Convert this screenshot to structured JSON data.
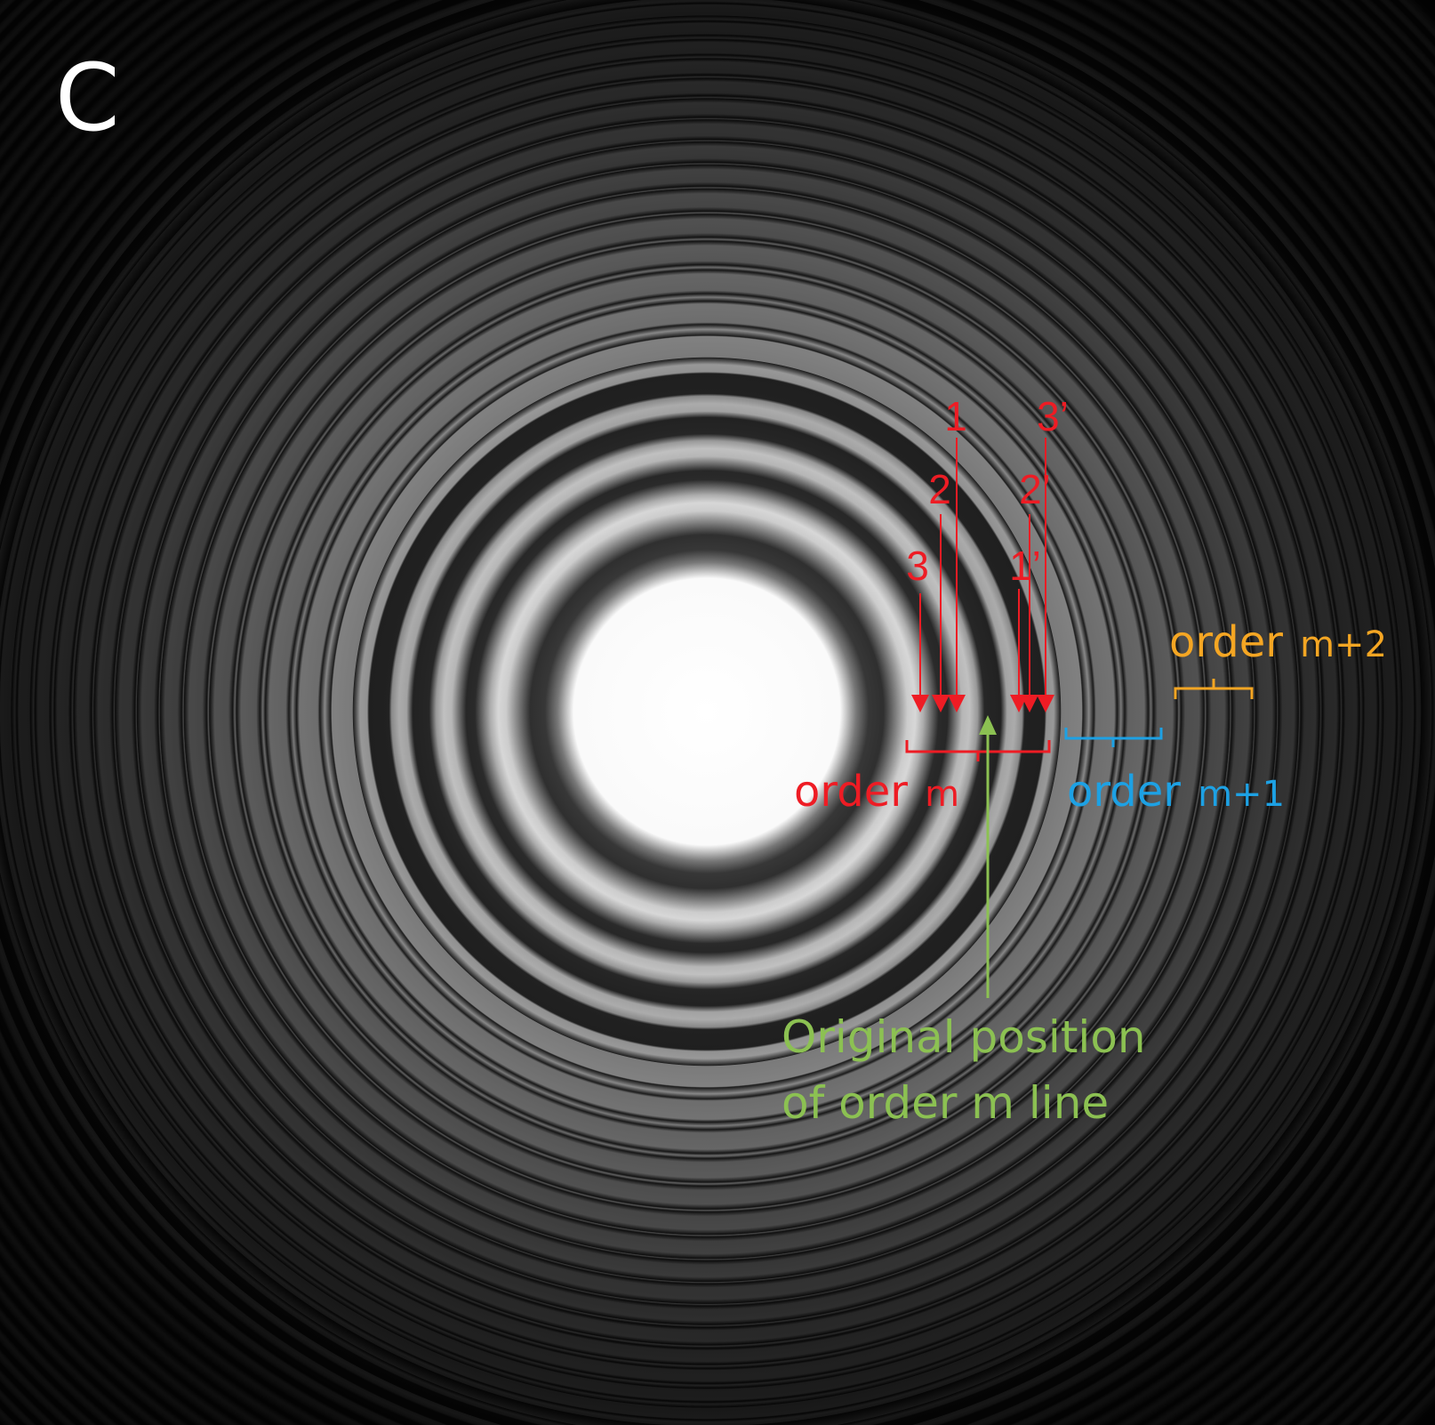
{
  "panel_label": "C",
  "colors": {
    "background": "#000000",
    "order_m": "#ee1c24",
    "order_m_plus_1": "#1da1e4",
    "order_m_plus_2": "#f5a623",
    "original_position": "#8cc152",
    "label_white": "#ffffff"
  },
  "arrows": {
    "inner_labels": [
      "3",
      "2",
      "1"
    ],
    "outer_labels": [
      "1’",
      "2’",
      "3’"
    ]
  },
  "orders": {
    "m": {
      "word": "order",
      "index": "m"
    },
    "m_plus_1": {
      "word": "order",
      "index": "m+1"
    },
    "m_plus_2": {
      "word": "order",
      "index": "m+2"
    }
  },
  "original_position": {
    "line1": "Original position",
    "line2": "of order m line"
  }
}
